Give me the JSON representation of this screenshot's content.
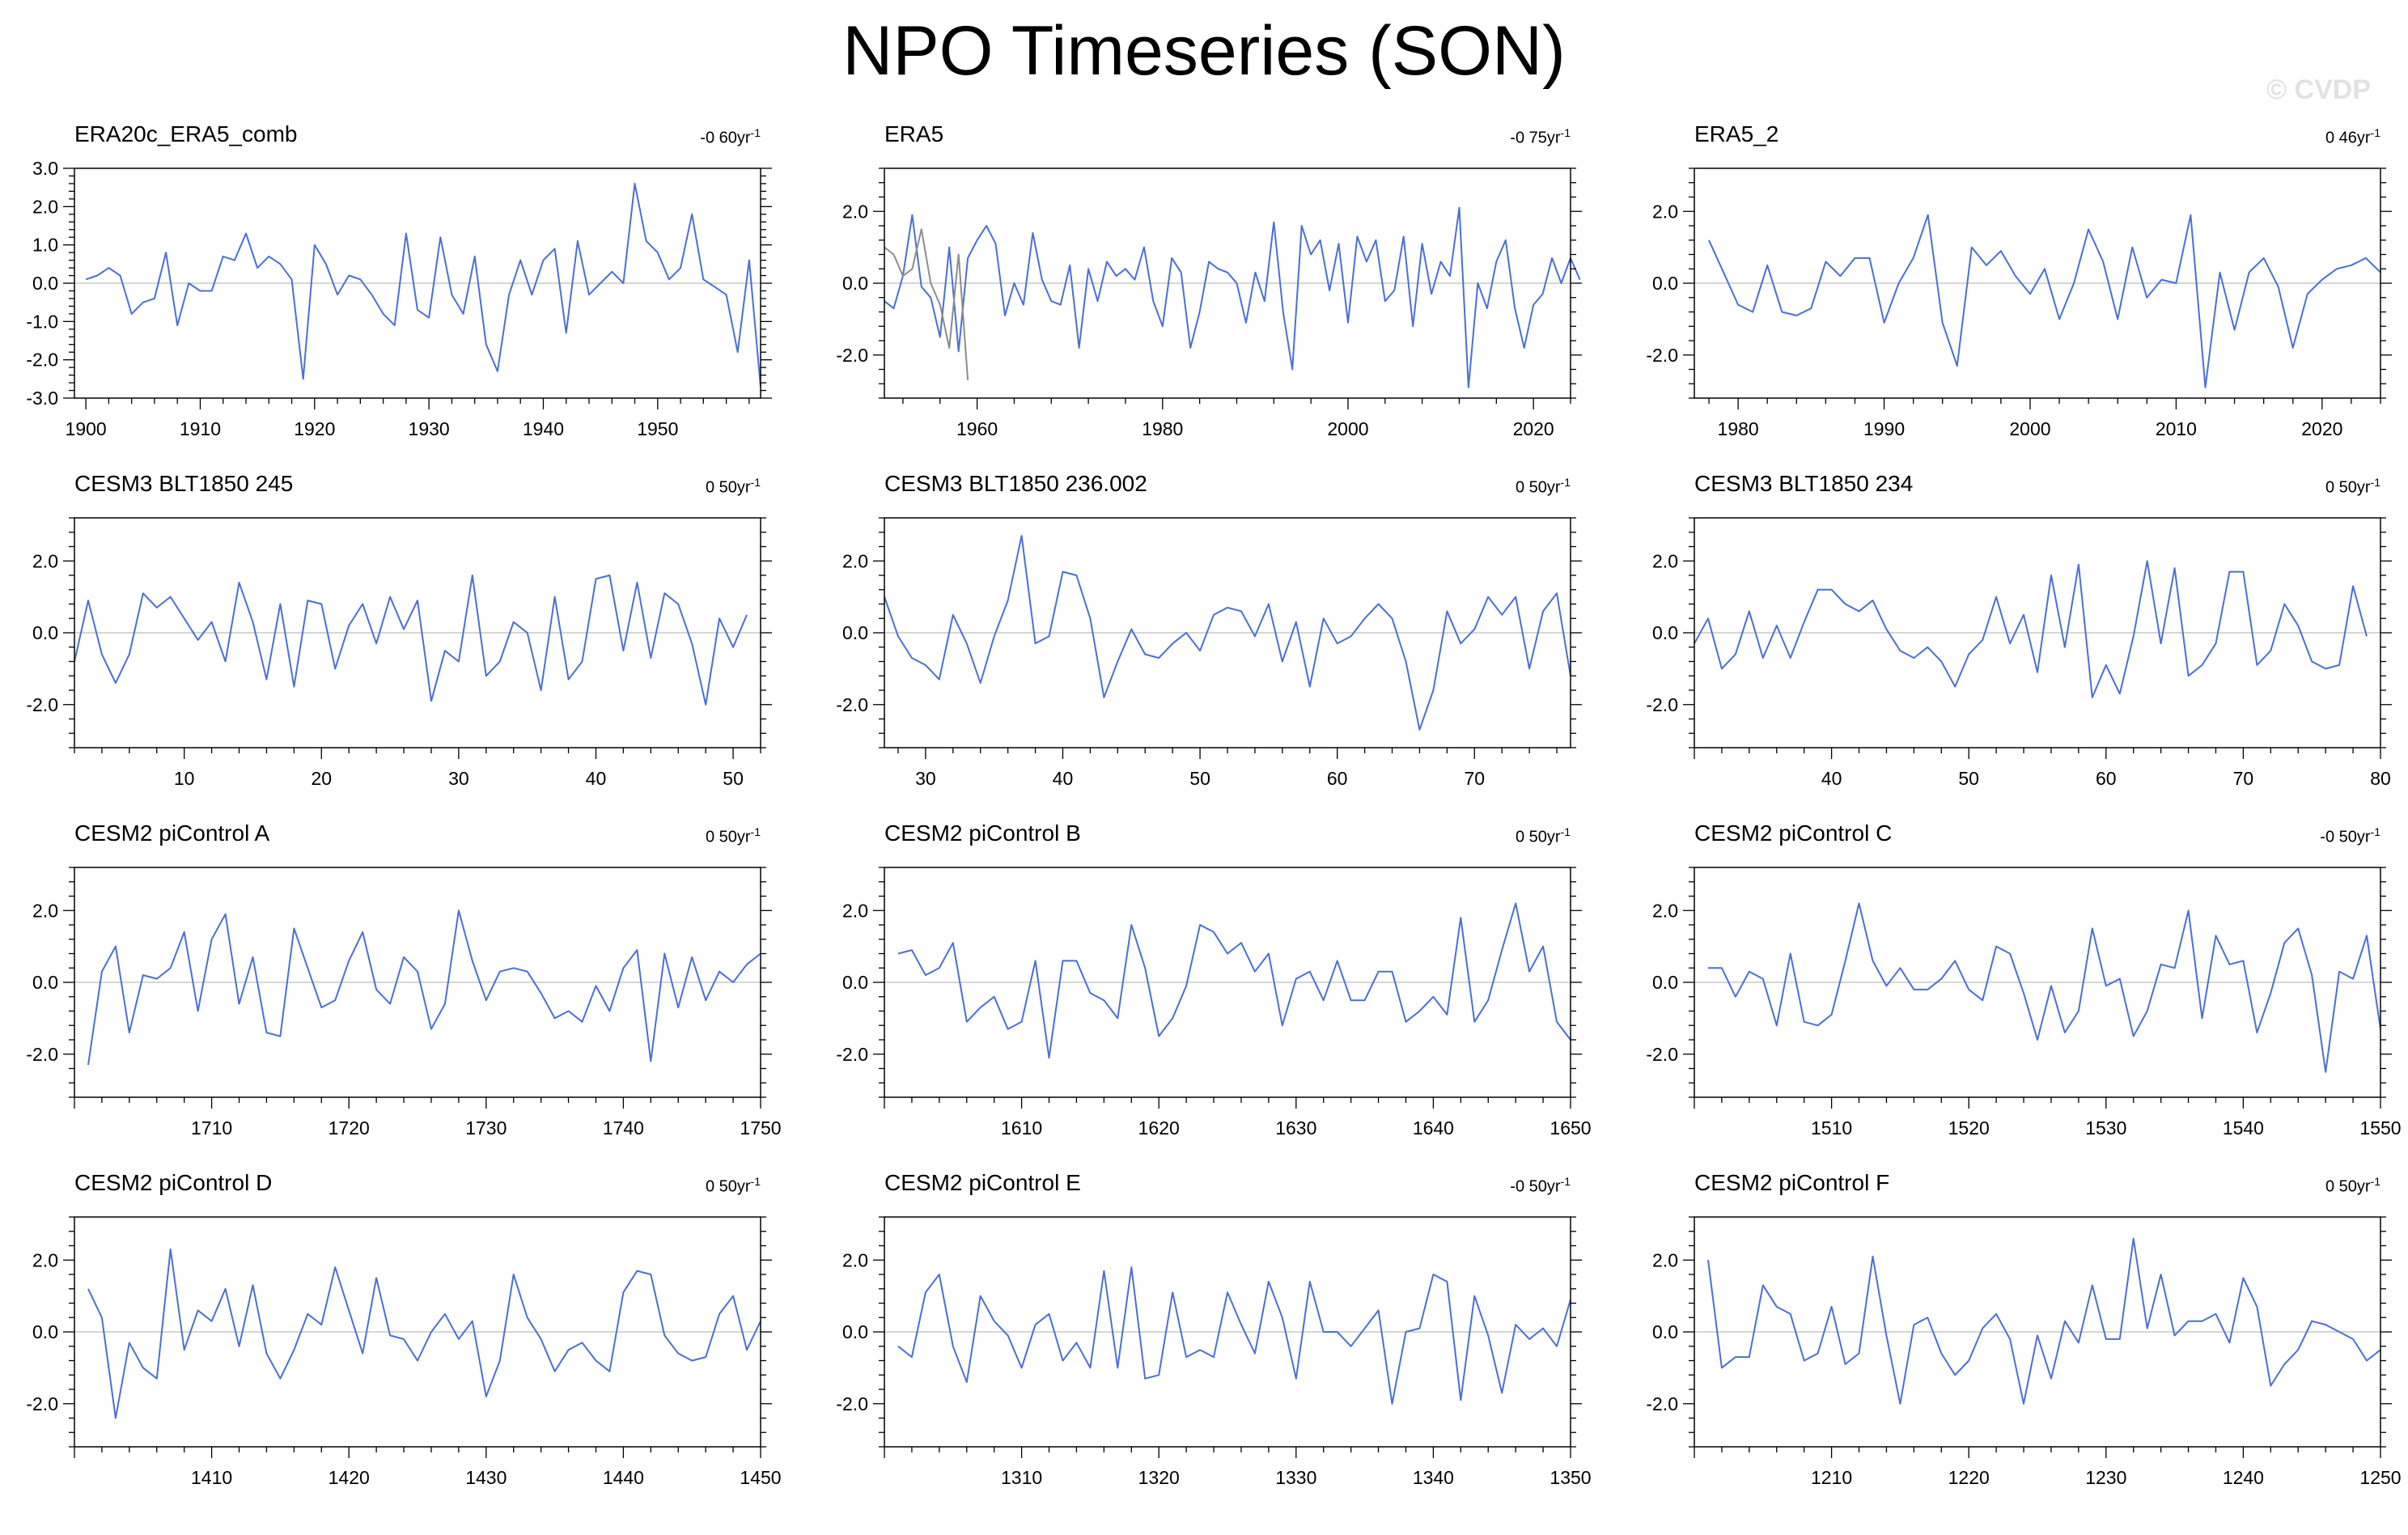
{
  "title": "NPO Timeseries (SON)",
  "watermark": "© CVDP",
  "colors": {
    "series": "#4a6fd6",
    "secondary": "#8c8c8c",
    "zero_line": "#c8c8c8",
    "frame": "#000000"
  },
  "chart_data": [
    {
      "type": "line",
      "title": "ERA20c_ERA5_comb",
      "trend": "-0 60yr",
      "trend_exp": "-1",
      "xlim": [
        1899,
        1959
      ],
      "ylim": [
        -3.0,
        3.0
      ],
      "xticks": [
        1900,
        1910,
        1920,
        1930,
        1940,
        1950
      ],
      "yticks": [
        -3,
        -2,
        -1,
        0,
        1,
        2,
        3
      ],
      "ytick_labels": [
        "-3.0",
        "-2.0",
        "-1.0",
        "0.0",
        "1.0",
        "2.0",
        "3.0"
      ],
      "start": 1900,
      "series": [
        {
          "name": "NPO",
          "values": [
            0.1,
            0.2,
            0.4,
            0.2,
            -0.8,
            -0.5,
            -0.4,
            0.8,
            -1.1,
            0.0,
            -0.2,
            -0.2,
            0.7,
            0.6,
            1.3,
            0.4,
            0.7,
            0.5,
            0.1,
            -2.5,
            1.0,
            0.5,
            -0.3,
            0.2,
            0.1,
            -0.3,
            -0.8,
            -1.1,
            1.3,
            -0.7,
            -0.9,
            1.2,
            -0.3,
            -0.8,
            0.7,
            -1.6,
            -2.3,
            -0.3,
            0.6,
            -0.3,
            0.6,
            0.9,
            -1.3,
            1.1,
            -0.3,
            0.0,
            0.3,
            0.0,
            2.6,
            1.1,
            0.8,
            0.1,
            0.4,
            1.8,
            0.1,
            -0.1,
            -0.3,
            -1.8,
            0.6,
            -2.7
          ]
        }
      ]
    },
    {
      "type": "line",
      "title": "ERA5",
      "trend": "-0 75yr",
      "trend_exp": "-1",
      "xlim": [
        1950,
        2024
      ],
      "ylim": [
        -3.2,
        3.2
      ],
      "xticks": [
        1960,
        1980,
        2000,
        2020
      ],
      "yticks": [
        -2,
        0,
        2
      ],
      "ytick_labels": [
        "-2.0",
        "0.0",
        "2.0"
      ],
      "start": 1950,
      "series": [
        {
          "name": "ERA5",
          "values": [
            -0.5,
            -0.7,
            0.2,
            1.9,
            -0.1,
            -0.4,
            -1.5,
            1.0,
            -1.9,
            0.7,
            1.2,
            1.6,
            1.1,
            -0.9,
            0.0,
            -0.6,
            1.4,
            0.1,
            -0.5,
            -0.6,
            0.5,
            -1.8,
            0.4,
            -0.5,
            0.6,
            0.2,
            0.4,
            0.1,
            1.0,
            -0.5,
            -1.2,
            0.7,
            0.3,
            -1.8,
            -0.8,
            0.6,
            0.4,
            0.3,
            0.0,
            -1.1,
            0.3,
            -0.5,
            1.7,
            -0.8,
            -2.4,
            1.6,
            0.8,
            1.2,
            -0.2,
            1.1,
            -1.1,
            1.3,
            0.6,
            1.2,
            -0.5,
            -0.2,
            1.3,
            -1.2,
            1.1,
            -0.3,
            0.6,
            0.2,
            2.1,
            -2.9,
            0.0,
            -0.7,
            0.6,
            1.2,
            -0.7,
            -1.8,
            -0.6,
            -0.3,
            0.7,
            0.0,
            0.7,
            0.1
          ]
        },
        {
          "name": "ERA20c",
          "values": [
            1.0,
            0.8,
            0.2,
            0.4,
            1.5,
            0.0,
            -0.6,
            -1.8,
            0.8,
            -2.7
          ]
        }
      ]
    },
    {
      "type": "line",
      "title": "ERA5_2",
      "trend": "0 46yr",
      "trend_exp": "-1",
      "xlim": [
        1977,
        2024
      ],
      "ylim": [
        -3.2,
        3.2
      ],
      "xticks": [
        1980,
        1990,
        2000,
        2010,
        2020
      ],
      "yticks": [
        -2,
        0,
        2
      ],
      "ytick_labels": [
        "-2.0",
        "0.0",
        "2.0"
      ],
      "start": 1978,
      "series": [
        {
          "name": "NPO",
          "values": [
            1.2,
            0.3,
            -0.6,
            -0.8,
            0.5,
            -0.8,
            -0.9,
            -0.7,
            0.6,
            0.2,
            0.7,
            0.7,
            -1.1,
            0.0,
            0.7,
            1.9,
            -1.1,
            -2.3,
            1.0,
            0.5,
            0.9,
            0.2,
            -0.3,
            0.4,
            -1.0,
            0.0,
            1.5,
            0.6,
            -1.0,
            1.0,
            -0.4,
            0.1,
            0.0,
            1.9,
            -2.9,
            0.3,
            -1.3,
            0.3,
            0.7,
            -0.1,
            -1.8,
            -0.3,
            0.1,
            0.4,
            0.5,
            0.7,
            0.3
          ]
        }
      ]
    },
    {
      "type": "line",
      "title": "CESM3 BLT1850 245",
      "trend": "0 50yr",
      "trend_exp": "-1",
      "xlim": [
        2,
        52
      ],
      "ylim": [
        -3.2,
        3.2
      ],
      "xticks": [
        10,
        20,
        30,
        40,
        50
      ],
      "yticks": [
        -2,
        0,
        2
      ],
      "ytick_labels": [
        "-2.0",
        "0.0",
        "2.0"
      ],
      "start": 2,
      "series": [
        {
          "name": "NPO",
          "values": [
            -0.8,
            0.9,
            -0.6,
            -1.4,
            -0.6,
            1.1,
            0.7,
            1.0,
            0.4,
            -0.2,
            0.3,
            -0.8,
            1.4,
            0.3,
            -1.3,
            0.8,
            -1.5,
            0.9,
            0.8,
            -1.0,
            0.2,
            0.8,
            -0.3,
            1.0,
            0.1,
            0.9,
            -1.9,
            -0.5,
            -0.8,
            1.6,
            -1.2,
            -0.8,
            0.3,
            0.0,
            -1.6,
            1.0,
            -1.3,
            -0.8,
            1.5,
            1.6,
            -0.5,
            1.4,
            -0.7,
            1.1,
            0.8,
            -0.3,
            -2.0,
            0.4,
            -0.4,
            0.5
          ]
        }
      ]
    },
    {
      "type": "line",
      "title": "CESM3 BLT1850 236.002",
      "trend": "0 50yr",
      "trend_exp": "-1",
      "xlim": [
        27,
        77
      ],
      "ylim": [
        -3.2,
        3.2
      ],
      "xticks": [
        30,
        40,
        50,
        60,
        70
      ],
      "yticks": [
        -2,
        0,
        2
      ],
      "ytick_labels": [
        "-2.0",
        "0.0",
        "2.0"
      ],
      "start": 27,
      "series": [
        {
          "name": "NPO",
          "values": [
            1.0,
            -0.1,
            -0.7,
            -0.9,
            -1.3,
            0.5,
            -0.3,
            -1.4,
            -0.1,
            0.9,
            2.7,
            -0.3,
            -0.1,
            1.7,
            1.6,
            0.4,
            -1.8,
            -0.8,
            0.1,
            -0.6,
            -0.7,
            -0.3,
            0.0,
            -0.5,
            0.5,
            0.7,
            0.6,
            -0.1,
            0.8,
            -0.8,
            0.3,
            -1.5,
            0.4,
            -0.3,
            -0.1,
            0.4,
            0.8,
            0.4,
            -0.8,
            -2.7,
            -1.6,
            0.6,
            -0.3,
            0.1,
            1.0,
            0.5,
            1.0,
            -1.0,
            0.6,
            1.1,
            -1.2
          ]
        }
      ]
    },
    {
      "type": "line",
      "title": "CESM3 BLT1850 234",
      "trend": "0 50yr",
      "trend_exp": "-1",
      "xlim": [
        30,
        80
      ],
      "ylim": [
        -3.2,
        3.2
      ],
      "xticks": [
        40,
        50,
        60,
        70,
        80
      ],
      "yticks": [
        -2,
        0,
        2
      ],
      "ytick_labels": [
        "-2.0",
        "0.0",
        "2.0"
      ],
      "start": 30,
      "series": [
        {
          "name": "NPO",
          "values": [
            -0.3,
            0.4,
            -1.0,
            -0.6,
            0.6,
            -0.7,
            0.2,
            -0.7,
            0.3,
            1.2,
            1.2,
            0.8,
            0.6,
            0.9,
            0.1,
            -0.5,
            -0.7,
            -0.4,
            -0.8,
            -1.5,
            -0.6,
            -0.2,
            1.0,
            -0.3,
            0.5,
            -1.1,
            1.6,
            -0.4,
            1.9,
            -1.8,
            -0.9,
            -1.7,
            -0.1,
            2.0,
            -0.3,
            1.8,
            -1.2,
            -0.9,
            -0.3,
            1.7,
            1.7,
            -0.9,
            -0.5,
            0.8,
            0.2,
            -0.8,
            -1.0,
            -0.9,
            1.3,
            -0.1
          ]
        }
      ]
    },
    {
      "type": "line",
      "title": "CESM2 piControl A",
      "trend": "0 50yr",
      "trend_exp": "-1",
      "xlim": [
        1700,
        1750
      ],
      "ylim": [
        -3.2,
        3.2
      ],
      "xticks": [
        1710,
        1720,
        1730,
        1740,
        1750
      ],
      "yticks": [
        -2,
        0,
        2
      ],
      "ytick_labels": [
        "-2.0",
        "0.0",
        "2.0"
      ],
      "start": 1701,
      "series": [
        {
          "name": "NPO",
          "values": [
            -2.3,
            0.3,
            1.0,
            -1.4,
            0.2,
            0.1,
            0.4,
            1.4,
            -0.8,
            1.2,
            1.9,
            -0.6,
            0.7,
            -1.4,
            -1.5,
            1.5,
            0.4,
            -0.7,
            -0.5,
            0.6,
            1.4,
            -0.2,
            -0.6,
            0.7,
            0.3,
            -1.3,
            -0.6,
            2.0,
            0.6,
            -0.5,
            0.3,
            0.4,
            0.3,
            -0.3,
            -1.0,
            -0.8,
            -1.1,
            -0.1,
            -0.8,
            0.4,
            0.9,
            -2.2,
            0.8,
            -0.7,
            0.7,
            -0.5,
            0.3,
            0.0,
            0.5,
            0.8
          ]
        }
      ]
    },
    {
      "type": "line",
      "title": "CESM2 piControl B",
      "trend": "0 50yr",
      "trend_exp": "-1",
      "xlim": [
        1600,
        1650
      ],
      "ylim": [
        -3.2,
        3.2
      ],
      "xticks": [
        1610,
        1620,
        1630,
        1640,
        1650
      ],
      "yticks": [
        -2,
        0,
        2
      ],
      "ytick_labels": [
        "-2.0",
        "0.0",
        "2.0"
      ],
      "start": 1601,
      "series": [
        {
          "name": "NPO",
          "values": [
            0.8,
            0.9,
            0.2,
            0.4,
            1.1,
            -1.1,
            -0.7,
            -0.4,
            -1.3,
            -1.1,
            0.6,
            -2.1,
            0.6,
            0.6,
            -0.3,
            -0.5,
            -1.0,
            1.6,
            0.4,
            -1.5,
            -1.0,
            -0.1,
            1.6,
            1.4,
            0.8,
            1.1,
            0.3,
            0.8,
            -1.2,
            0.1,
            0.3,
            -0.5,
            0.6,
            -0.5,
            -0.5,
            0.3,
            0.3,
            -1.1,
            -0.8,
            -0.4,
            -0.9,
            1.8,
            -1.1,
            -0.5,
            0.9,
            2.2,
            0.3,
            1.0,
            -1.1,
            -1.6
          ]
        }
      ]
    },
    {
      "type": "line",
      "title": "CESM2 piControl C",
      "trend": "-0 50yr",
      "trend_exp": "-1",
      "xlim": [
        1500,
        1550
      ],
      "ylim": [
        -3.2,
        3.2
      ],
      "xticks": [
        1510,
        1520,
        1530,
        1540,
        1550
      ],
      "yticks": [
        -2,
        0,
        2
      ],
      "ytick_labels": [
        "-2.0",
        "0.0",
        "2.0"
      ],
      "start": 1501,
      "series": [
        {
          "name": "NPO",
          "values": [
            0.4,
            0.4,
            -0.4,
            0.3,
            0.1,
            -1.2,
            0.8,
            -1.1,
            -1.2,
            -0.9,
            0.6,
            2.2,
            0.6,
            -0.1,
            0.4,
            -0.2,
            -0.2,
            0.1,
            0.6,
            -0.2,
            -0.5,
            1.0,
            0.8,
            -0.3,
            -1.6,
            -0.1,
            -1.4,
            -0.8,
            1.5,
            -0.1,
            0.1,
            -1.5,
            -0.8,
            0.5,
            0.4,
            2.0,
            -1.0,
            1.3,
            0.5,
            0.6,
            -1.4,
            -0.3,
            1.1,
            1.5,
            0.2,
            -2.5,
            0.3,
            0.1,
            1.3,
            -1.3
          ]
        }
      ]
    },
    {
      "type": "line",
      "title": "CESM2 piControl D",
      "trend": "0 50yr",
      "trend_exp": "-1",
      "xlim": [
        1400,
        1450
      ],
      "ylim": [
        -3.2,
        3.2
      ],
      "xticks": [
        1410,
        1420,
        1430,
        1440,
        1450
      ],
      "yticks": [
        -2,
        0,
        2
      ],
      "ytick_labels": [
        "-2.0",
        "0.0",
        "2.0"
      ],
      "start": 1401,
      "series": [
        {
          "name": "NPO",
          "values": [
            1.2,
            0.4,
            -2.4,
            -0.3,
            -1.0,
            -1.3,
            2.3,
            -0.5,
            0.6,
            0.3,
            1.2,
            -0.4,
            1.3,
            -0.6,
            -1.3,
            -0.5,
            0.5,
            0.2,
            1.8,
            0.6,
            -0.6,
            1.5,
            -0.1,
            -0.2,
            -0.8,
            0.0,
            0.5,
            -0.2,
            0.3,
            -1.8,
            -0.8,
            1.6,
            0.4,
            -0.2,
            -1.1,
            -0.5,
            -0.3,
            -0.8,
            -1.1,
            1.1,
            1.7,
            1.6,
            -0.1,
            -0.6,
            -0.8,
            -0.7,
            0.5,
            1.0,
            -0.5,
            0.3
          ]
        }
      ]
    },
    {
      "type": "line",
      "title": "CESM2 piControl E",
      "trend": "-0 50yr",
      "trend_exp": "-1",
      "xlim": [
        1300,
        1350
      ],
      "ylim": [
        -3.2,
        3.2
      ],
      "xticks": [
        1310,
        1320,
        1330,
        1340,
        1350
      ],
      "yticks": [
        -2,
        0,
        2
      ],
      "ytick_labels": [
        "-2.0",
        "0.0",
        "2.0"
      ],
      "start": 1301,
      "series": [
        {
          "name": "NPO",
          "values": [
            -0.4,
            -0.7,
            1.1,
            1.6,
            -0.4,
            -1.4,
            1.0,
            0.3,
            -0.1,
            -1.0,
            0.2,
            0.5,
            -0.8,
            -0.3,
            -1.0,
            1.7,
            -1.0,
            1.8,
            -1.3,
            -1.2,
            1.1,
            -0.7,
            -0.5,
            -0.7,
            1.1,
            0.2,
            -0.6,
            1.4,
            0.4,
            -1.3,
            1.4,
            0.0,
            0.0,
            -0.4,
            0.1,
            0.6,
            -2.0,
            0.0,
            0.1,
            1.6,
            1.4,
            -1.9,
            1.0,
            -0.1,
            -1.7,
            0.2,
            -0.2,
            0.1,
            -0.4,
            0.9
          ]
        }
      ]
    },
    {
      "type": "line",
      "title": "CESM2 piControl F",
      "trend": "0 50yr",
      "trend_exp": "-1",
      "xlim": [
        1200,
        1250
      ],
      "ylim": [
        -3.2,
        3.2
      ],
      "xticks": [
        1210,
        1220,
        1230,
        1240,
        1250
      ],
      "yticks": [
        -2,
        0,
        2
      ],
      "ytick_labels": [
        "-2.0",
        "0.0",
        "2.0"
      ],
      "start": 1201,
      "series": [
        {
          "name": "NPO",
          "values": [
            2.0,
            -1.0,
            -0.7,
            -0.7,
            1.3,
            0.7,
            0.5,
            -0.8,
            -0.6,
            0.7,
            -0.9,
            -0.6,
            2.1,
            -0.1,
            -2.0,
            0.2,
            0.4,
            -0.6,
            -1.2,
            -0.8,
            0.1,
            0.5,
            -0.2,
            -2.0,
            -0.1,
            -1.3,
            0.3,
            -0.3,
            1.3,
            -0.2,
            -0.2,
            2.6,
            0.1,
            1.6,
            -0.1,
            0.3,
            0.3,
            0.5,
            -0.3,
            1.5,
            0.7,
            -1.5,
            -0.9,
            -0.5,
            0.3,
            0.2,
            0.0,
            -0.2,
            -0.8,
            -0.5
          ]
        }
      ]
    }
  ]
}
